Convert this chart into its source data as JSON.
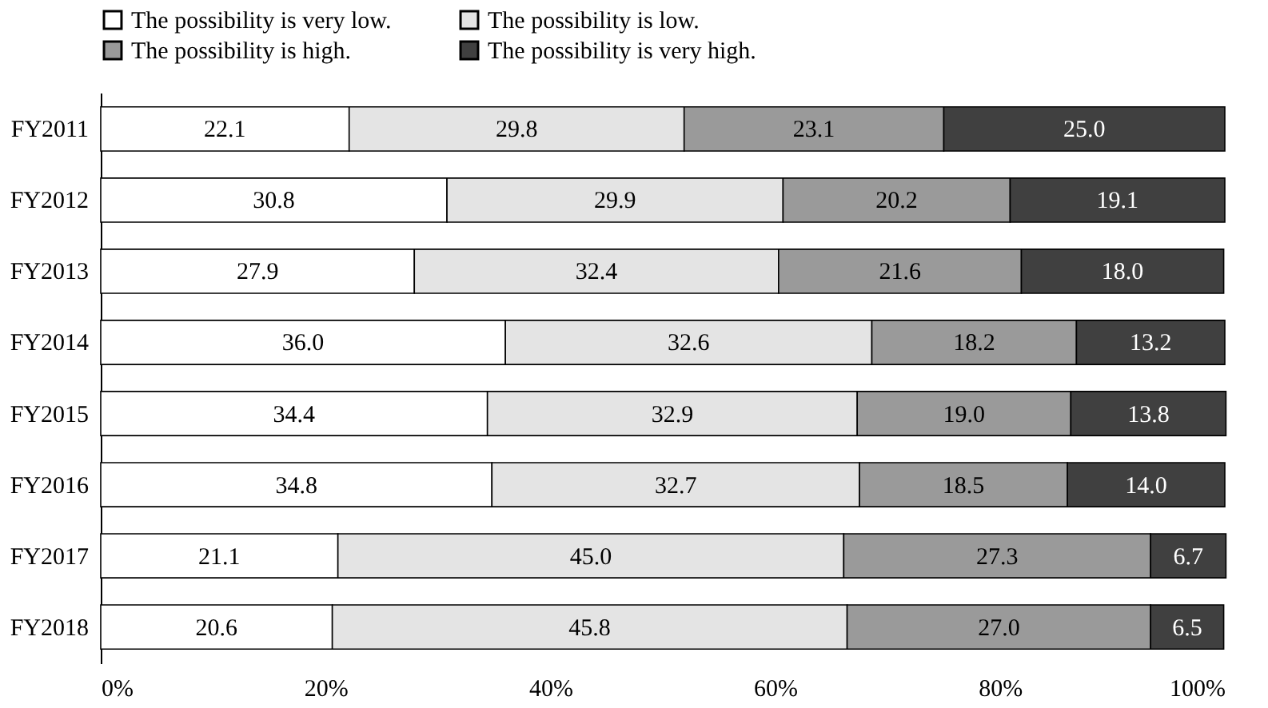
{
  "chart_data": {
    "type": "bar",
    "orientation": "horizontal",
    "stacked": true,
    "legend": "top",
    "grid": false,
    "categories": [
      "FY2011",
      "FY2012",
      "FY2013",
      "FY2014",
      "FY2015",
      "FY2016",
      "FY2017",
      "FY2018"
    ],
    "series": [
      {
        "name": "The possibility is very low.",
        "color": "#ffffff",
        "values": [
          22.1,
          30.8,
          27.9,
          36.0,
          34.4,
          34.8,
          21.1,
          20.6
        ],
        "value_labels": [
          "22.1",
          "30.8",
          "27.9",
          "36.0",
          "34.4",
          "34.8",
          "21.1",
          "20.6"
        ]
      },
      {
        "name": "The possibility is low.",
        "color": "#e4e4e4",
        "values": [
          29.8,
          29.9,
          32.4,
          32.6,
          32.9,
          32.7,
          45.0,
          45.8
        ],
        "value_labels": [
          "29.8",
          "29.9",
          "32.4",
          "32.6",
          "32.9",
          "32.7",
          "45.0",
          "45.8"
        ]
      },
      {
        "name": "The possibility is high.",
        "color": "#9a9a9a",
        "values": [
          23.1,
          20.2,
          21.6,
          18.2,
          19.0,
          18.5,
          27.3,
          27.0
        ],
        "value_labels": [
          "23.1",
          "20.2",
          "21.6",
          "18.2",
          "19.0",
          "18.5",
          "27.3",
          "27.0"
        ]
      },
      {
        "name": "The possibility is very high.",
        "color": "#404040",
        "values": [
          25.0,
          19.1,
          18.0,
          13.2,
          13.8,
          14.0,
          6.7,
          6.5
        ],
        "value_labels": [
          "25.0",
          "19.1",
          "18.0",
          "13.2",
          "13.8",
          "14.0",
          "6.7",
          "6.5"
        ]
      }
    ],
    "xlim": [
      0,
      100
    ],
    "xticks": [
      {
        "value": 0,
        "label": "0%"
      },
      {
        "value": 20,
        "label": "20%"
      },
      {
        "value": 40,
        "label": "40%"
      },
      {
        "value": 60,
        "label": "60%"
      },
      {
        "value": 80,
        "label": "80%"
      },
      {
        "value": 100,
        "label": "100%"
      }
    ]
  }
}
